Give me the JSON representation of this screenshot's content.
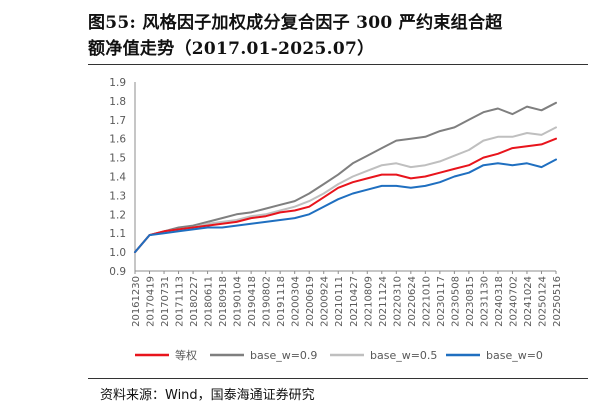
{
  "title_line1": "图55: 风格因子加权成分复合因子 300 严约束组合超",
  "title_line2": "额净值走势（2017.01-2025.07）",
  "source": "资料来源：Wind，国泰海通证券研究",
  "colors": {
    "equal": "#e8141c",
    "w09": "#7f7f7f",
    "w05": "#bfbfbf",
    "w0": "#1f6fc0"
  },
  "chart_data": {
    "type": "line",
    "title": "",
    "xlabel": "",
    "ylabel": "",
    "ylim": [
      0.9,
      1.9
    ],
    "yticks": [
      "0.9",
      "1.0",
      "1.1",
      "1.2",
      "1.3",
      "1.4",
      "1.5",
      "1.6",
      "1.7",
      "1.8",
      "1.9"
    ],
    "x": [
      "20161230",
      "20170419",
      "20170731",
      "20171113",
      "20180227",
      "20180611",
      "20180918",
      "20190104",
      "20190418",
      "20190802",
      "20191118",
      "20200304",
      "20200619",
      "20200924",
      "20210111",
      "20210427",
      "20210809",
      "20211124",
      "20220310",
      "20220624",
      "20221010",
      "20230117",
      "20230508",
      "20230815",
      "20231130",
      "20240318",
      "20240702",
      "20241024",
      "20250124",
      "20250516"
    ],
    "legend_position": "bottom",
    "grid": false,
    "series": [
      {
        "name": "等权",
        "color": "#e8141c",
        "values": [
          1.0,
          1.09,
          1.11,
          1.12,
          1.13,
          1.14,
          1.15,
          1.16,
          1.18,
          1.19,
          1.21,
          1.22,
          1.24,
          1.29,
          1.34,
          1.37,
          1.39,
          1.41,
          1.41,
          1.39,
          1.4,
          1.42,
          1.44,
          1.46,
          1.5,
          1.52,
          1.55,
          1.56,
          1.57,
          1.6
        ]
      },
      {
        "name": "base_w=0.9",
        "color": "#7f7f7f",
        "values": [
          1.0,
          1.09,
          1.11,
          1.13,
          1.14,
          1.16,
          1.18,
          1.2,
          1.21,
          1.23,
          1.25,
          1.27,
          1.31,
          1.36,
          1.41,
          1.47,
          1.51,
          1.55,
          1.59,
          1.6,
          1.61,
          1.64,
          1.66,
          1.7,
          1.74,
          1.76,
          1.73,
          1.77,
          1.75,
          1.79
        ]
      },
      {
        "name": "base_w=0.5",
        "color": "#bfbfbf",
        "values": [
          1.0,
          1.09,
          1.11,
          1.12,
          1.13,
          1.15,
          1.16,
          1.17,
          1.19,
          1.2,
          1.22,
          1.24,
          1.27,
          1.31,
          1.36,
          1.4,
          1.43,
          1.46,
          1.47,
          1.45,
          1.46,
          1.48,
          1.51,
          1.54,
          1.59,
          1.61,
          1.61,
          1.63,
          1.62,
          1.66
        ]
      },
      {
        "name": "base_w=0",
        "color": "#1f6fc0",
        "values": [
          1.0,
          1.09,
          1.1,
          1.11,
          1.12,
          1.13,
          1.13,
          1.14,
          1.15,
          1.16,
          1.17,
          1.18,
          1.2,
          1.24,
          1.28,
          1.31,
          1.33,
          1.35,
          1.35,
          1.34,
          1.35,
          1.37,
          1.4,
          1.42,
          1.46,
          1.47,
          1.46,
          1.47,
          1.45,
          1.49
        ]
      }
    ]
  }
}
